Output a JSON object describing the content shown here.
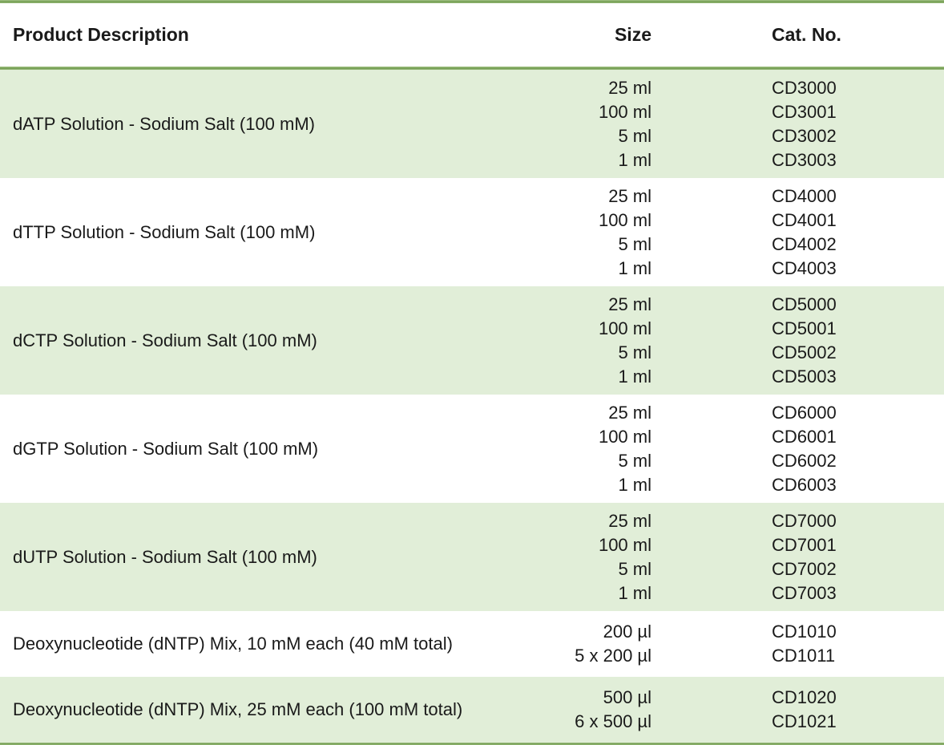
{
  "header": {
    "description": "Product Description",
    "size": "Size",
    "cat_no": "Cat. No."
  },
  "colors": {
    "rule_green": "#79A055",
    "shaded_row_green": "#E1EED8",
    "row_white": "#FFFFFF",
    "text": "#1A1A1A"
  },
  "table": {
    "rows": [
      {
        "description": "dATP Solution - Sodium Salt (100 mM)",
        "shaded": true,
        "items": [
          {
            "size": "25 ml",
            "cat": "CD3000"
          },
          {
            "size": "100 ml",
            "cat": "CD3001"
          },
          {
            "size": "5 ml",
            "cat": "CD3002"
          },
          {
            "size": "1 ml",
            "cat": "CD3003"
          }
        ]
      },
      {
        "description": "dTTP Solution - Sodium Salt (100 mM)",
        "shaded": false,
        "items": [
          {
            "size": "25 ml",
            "cat": "CD4000"
          },
          {
            "size": "100 ml",
            "cat": "CD4001"
          },
          {
            "size": "5 ml",
            "cat": "CD4002"
          },
          {
            "size": "1 ml",
            "cat": "CD4003"
          }
        ]
      },
      {
        "description": "dCTP Solution - Sodium Salt (100 mM)",
        "shaded": true,
        "items": [
          {
            "size": "25 ml",
            "cat": "CD5000"
          },
          {
            "size": "100 ml",
            "cat": "CD5001"
          },
          {
            "size": "5 ml",
            "cat": "CD5002"
          },
          {
            "size": "1 ml",
            "cat": "CD5003"
          }
        ]
      },
      {
        "description": "dGTP Solution - Sodium Salt (100 mM)",
        "shaded": false,
        "items": [
          {
            "size": "25 ml",
            "cat": "CD6000"
          },
          {
            "size": "100 ml",
            "cat": "CD6001"
          },
          {
            "size": "5 ml",
            "cat": "CD6002"
          },
          {
            "size": "1 ml",
            "cat": "CD6003"
          }
        ]
      },
      {
        "description": "dUTP Solution - Sodium Salt (100 mM)",
        "shaded": true,
        "items": [
          {
            "size": "25 ml",
            "cat": "CD7000"
          },
          {
            "size": "100 ml",
            "cat": "CD7001"
          },
          {
            "size": "5 ml",
            "cat": "CD7002"
          },
          {
            "size": "1 ml",
            "cat": "CD7003"
          }
        ]
      },
      {
        "description": "Deoxynucleotide (dNTP) Mix, 10 mM each (40 mM total)",
        "shaded": false,
        "items": [
          {
            "size": "200 µl",
            "cat": "CD1010"
          },
          {
            "size": "5 x 200 µl",
            "cat": "CD1011"
          }
        ]
      },
      {
        "description": "Deoxynucleotide (dNTP) Mix, 25 mM each (100 mM total)",
        "shaded": true,
        "items": [
          {
            "size": "500 µl",
            "cat": "CD1020"
          },
          {
            "size": "6 x 500 µl",
            "cat": "CD1021"
          }
        ]
      }
    ]
  }
}
